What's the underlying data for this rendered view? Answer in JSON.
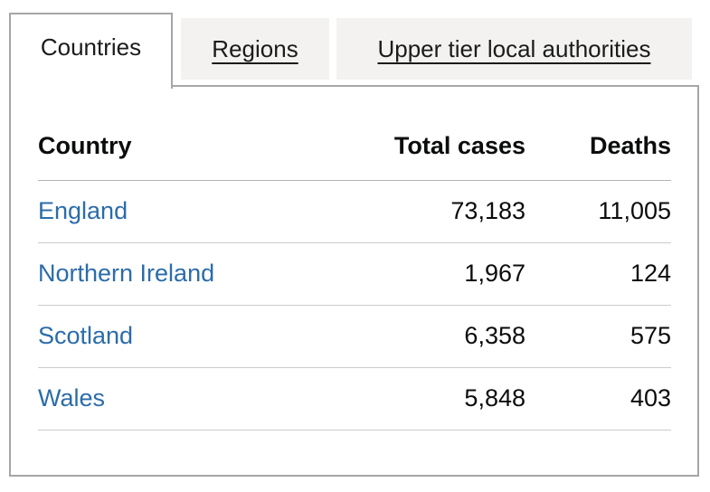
{
  "tabs": [
    {
      "label": "Countries",
      "active": true
    },
    {
      "label": "Regions",
      "active": false
    },
    {
      "label": "Upper tier local authorities",
      "active": false
    }
  ],
  "table": {
    "columns": [
      "Country",
      "Total cases",
      "Deaths"
    ],
    "rows": [
      {
        "country": "England",
        "total_cases": "73,183",
        "deaths": "11,005"
      },
      {
        "country": "Northern Ireland",
        "total_cases": "1,967",
        "deaths": "124"
      },
      {
        "country": "Scotland",
        "total_cases": "6,358",
        "deaths": "575"
      },
      {
        "country": "Wales",
        "total_cases": "5,848",
        "deaths": "403"
      }
    ]
  },
  "colors": {
    "link_blue": "#2b6caa",
    "inactive_tab_bg": "#f3f2f1",
    "panel_border": "#a6a6a6",
    "text": "#0b0c0c"
  }
}
